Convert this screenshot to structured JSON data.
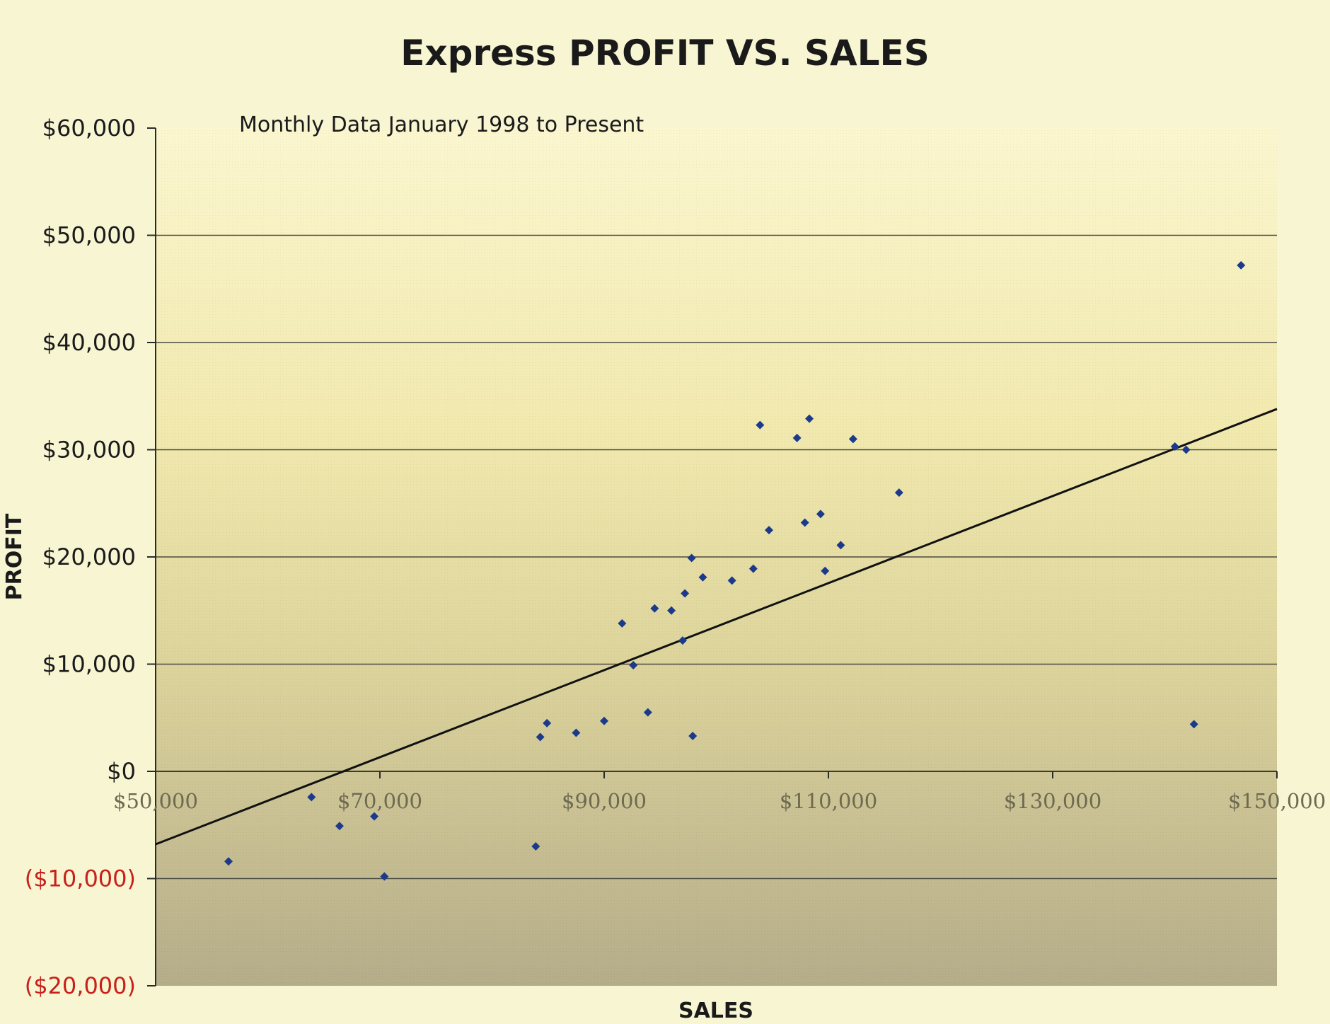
{
  "chart_data": {
    "type": "scatter",
    "title": "Express PROFIT VS. SALES",
    "subtitle": "Monthly Data January 1998 to Present",
    "xlabel": "SALES",
    "ylabel": "PROFIT",
    "xlim": [
      50000,
      150000
    ],
    "ylim": [
      -20000,
      60000
    ],
    "x_ticks": [
      {
        "value": 50000,
        "label": "$50,000"
      },
      {
        "value": 70000,
        "label": "$70,000"
      },
      {
        "value": 90000,
        "label": "$90,000"
      },
      {
        "value": 110000,
        "label": "$110,000"
      },
      {
        "value": 130000,
        "label": "$130,000"
      },
      {
        "value": 150000,
        "label": "$150,000"
      }
    ],
    "y_ticks": [
      {
        "value": 60000,
        "label": "$60,000"
      },
      {
        "value": 50000,
        "label": "$50,000"
      },
      {
        "value": 40000,
        "label": "$40,000"
      },
      {
        "value": 30000,
        "label": "$30,000"
      },
      {
        "value": 20000,
        "label": "$20,000"
      },
      {
        "value": 10000,
        "label": "$10,000"
      },
      {
        "value": 0,
        "label": "$0"
      },
      {
        "value": -10000,
        "label": "($10,000)"
      },
      {
        "value": -20000,
        "label": "($20,000)"
      }
    ],
    "grid": "horizontal",
    "negative_tick_color": "#c8201a",
    "point_color": "#1c3a8c",
    "trendline": {
      "x": [
        50000,
        150000
      ],
      "y": [
        -6800,
        33800
      ],
      "color": "#111111"
    },
    "points": [
      {
        "x": 56500,
        "y": -8400
      },
      {
        "x": 63900,
        "y": -2400
      },
      {
        "x": 66400,
        "y": -5100
      },
      {
        "x": 69500,
        "y": -4200
      },
      {
        "x": 70400,
        "y": -9800
      },
      {
        "x": 83900,
        "y": -7000
      },
      {
        "x": 84300,
        "y": 3200
      },
      {
        "x": 84900,
        "y": 4500
      },
      {
        "x": 87500,
        "y": 3600
      },
      {
        "x": 90000,
        "y": 4700
      },
      {
        "x": 91600,
        "y": 13800
      },
      {
        "x": 92600,
        "y": 9900
      },
      {
        "x": 93900,
        "y": 5500
      },
      {
        "x": 94500,
        "y": 15200
      },
      {
        "x": 96000,
        "y": 15000
      },
      {
        "x": 97000,
        "y": 12200
      },
      {
        "x": 97200,
        "y": 16600
      },
      {
        "x": 97800,
        "y": 19900
      },
      {
        "x": 97900,
        "y": 3300
      },
      {
        "x": 98800,
        "y": 18100
      },
      {
        "x": 101400,
        "y": 17800
      },
      {
        "x": 103300,
        "y": 18900
      },
      {
        "x": 103900,
        "y": 32300
      },
      {
        "x": 104700,
        "y": 22500
      },
      {
        "x": 107200,
        "y": 31100
      },
      {
        "x": 107900,
        "y": 23200
      },
      {
        "x": 108300,
        "y": 32900
      },
      {
        "x": 109300,
        "y": 24000
      },
      {
        "x": 109700,
        "y": 18700
      },
      {
        "x": 111100,
        "y": 21100
      },
      {
        "x": 112200,
        "y": 31000
      },
      {
        "x": 116300,
        "y": 26000
      },
      {
        "x": 140900,
        "y": 30300
      },
      {
        "x": 141900,
        "y": 30000
      },
      {
        "x": 142600,
        "y": 4400
      },
      {
        "x": 146800,
        "y": 47200
      }
    ]
  }
}
